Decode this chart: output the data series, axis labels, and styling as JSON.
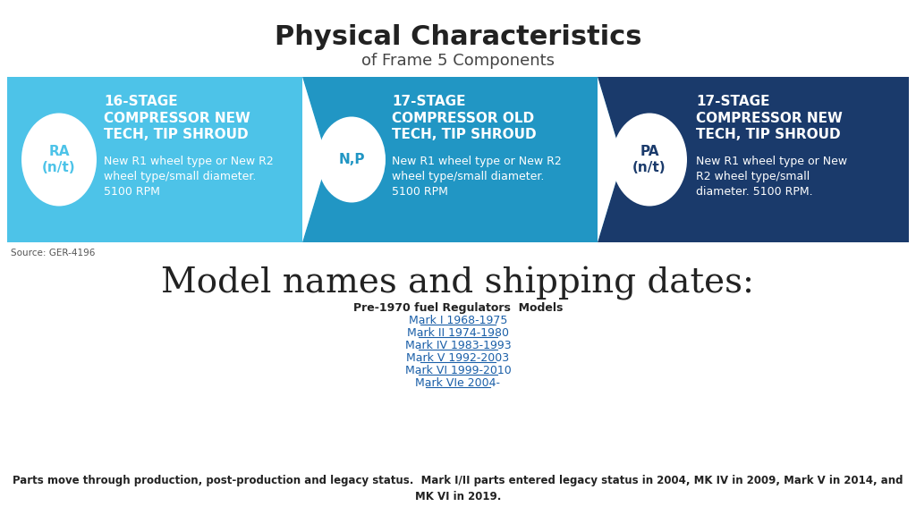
{
  "title": "Physical Characteristics",
  "subtitle": "of Frame 5 Components",
  "source": "Source: GER-4196",
  "bg_color": "#ffffff",
  "box1": {
    "color": "#4dc3e8",
    "label": "RA\n(n/t)",
    "heading": "16-STAGE\nCOMPRESSOR NEW\nTECH, TIP SHROUD",
    "body": "New R1 wheel type or New R2\nwheel type/small diameter.\n5100 RPM"
  },
  "box2": {
    "color": "#2196c4",
    "label": "N,P",
    "heading": "17-STAGE\nCOMPRESSOR OLD\nTECH, TIP SHROUD",
    "body": "New R1 wheel type or New R2\nwheel type/small diameter.\n5100 RPM"
  },
  "box3": {
    "color": "#1a3a6b",
    "label": "PA\n(n/t)",
    "heading": "17-STAGE\nCOMPRESSOR NEW\nTECH, TIP SHROUD",
    "body": "New R1 wheel type or New\nR2 wheel type/small\ndiameter. 5100 RPM."
  },
  "section_title": "Model names and shipping dates:",
  "models_heading": "Pre-1970 fuel Regulators  Models",
  "models": [
    "Mark I 1968-1975",
    "Mark II 1974-1980",
    "Mark IV 1983-1993",
    "Mark V 1992-2003",
    "Mark VI 1999-2010",
    "Mark VIe 2004-"
  ],
  "footer": "Parts move through production, post-production and legacy status.  Mark I/II parts entered legacy status in 2004, MK IV in 2009, Mark V in 2014, and\nMK VI in 2019."
}
